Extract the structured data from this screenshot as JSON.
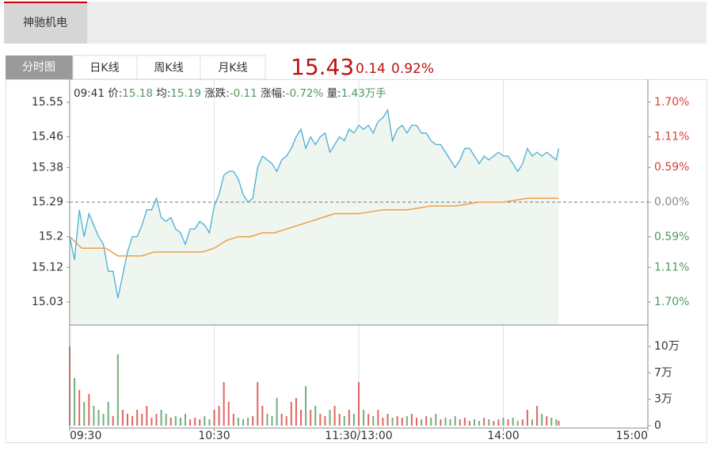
{
  "tabs": [
    "神驰机电"
  ],
  "chart_tabs": [
    "分时图",
    "日K线",
    "周K线",
    "月K线"
  ],
  "quote": {
    "price": 15.43,
    "change": 0.14,
    "change_pct": "0.92%"
  },
  "chart_data": {
    "type": "intraday",
    "info": {
      "time": "09:41",
      "price_label": "价:",
      "price": "15.18",
      "avg_label": "均:",
      "avg": "15.19",
      "chg_label": "涨跌:",
      "chg": "-0.11",
      "pct_label": "涨幅:",
      "pct": "-0.72%",
      "vol_label": "量:",
      "vol": "1.43万手"
    },
    "xlim": [
      0,
      240
    ],
    "xticks": [
      {
        "value": 0,
        "label": "09:30"
      },
      {
        "value": 60,
        "label": "10:30"
      },
      {
        "value": 120,
        "label": "11:30/13:00"
      },
      {
        "value": 180,
        "label": "14:00"
      },
      {
        "value": 240,
        "label": "15:00"
      }
    ],
    "x": [
      0,
      2,
      4,
      6,
      8,
      10,
      12,
      14,
      16,
      18,
      20,
      22,
      24,
      26,
      28,
      30,
      32,
      34,
      36,
      38,
      40,
      42,
      44,
      46,
      48,
      50,
      52,
      54,
      56,
      58,
      60,
      62,
      64,
      66,
      68,
      70,
      72,
      74,
      76,
      78,
      80,
      82,
      84,
      86,
      88,
      90,
      92,
      94,
      96,
      98,
      100,
      102,
      104,
      106,
      108,
      110,
      112,
      114,
      116,
      118,
      120,
      122,
      124,
      126,
      128,
      130,
      132,
      134,
      136,
      138,
      140,
      142,
      144,
      146,
      148,
      150,
      152,
      154,
      156,
      158,
      160,
      162,
      164,
      166,
      168,
      170,
      172,
      174,
      176,
      178,
      180,
      182,
      184,
      186,
      188,
      190,
      192,
      194,
      196,
      198,
      200,
      202,
      203
    ],
    "ylim": [
      14.97,
      15.61
    ],
    "yticks": [
      15.55,
      15.46,
      15.38,
      15.29,
      15.2,
      15.12,
      15.03
    ],
    "y2lim": [
      -2.09,
      2.09
    ],
    "y2ticks": [
      {
        "value": 1.7,
        "label": "1.70%"
      },
      {
        "value": 1.11,
        "label": "1.11%"
      },
      {
        "value": 0.59,
        "label": "0.59%"
      },
      {
        "value": 0,
        "label": "0.00%"
      },
      {
        "value": -0.59,
        "label": "0.59%"
      },
      {
        "value": -1.11,
        "label": "1.11%"
      },
      {
        "value": -1.7,
        "label": "1.70%"
      }
    ],
    "up_color": "#d9403a",
    "down_color": "#4e9a5e",
    "flat_color": "#888888",
    "series": [
      {
        "color": "#4aaed6",
        "fill": "#eef6ef",
        "values": [
          15.2,
          15.14,
          15.27,
          15.2,
          15.26,
          15.23,
          15.2,
          15.18,
          15.11,
          15.11,
          15.04,
          15.1,
          15.16,
          15.2,
          15.2,
          15.23,
          15.27,
          15.27,
          15.3,
          15.25,
          15.24,
          15.25,
          15.22,
          15.21,
          15.18,
          15.22,
          15.22,
          15.24,
          15.23,
          15.21,
          15.28,
          15.31,
          15.36,
          15.37,
          15.37,
          15.35,
          15.31,
          15.29,
          15.3,
          15.38,
          15.41,
          15.4,
          15.39,
          15.37,
          15.4,
          15.41,
          15.43,
          15.46,
          15.48,
          15.43,
          15.46,
          15.44,
          15.46,
          15.47,
          15.42,
          15.44,
          15.46,
          15.45,
          15.48,
          15.47,
          15.49,
          15.48,
          15.49,
          15.47,
          15.5,
          15.51,
          15.53,
          15.45,
          15.48,
          15.49,
          15.47,
          15.49,
          15.49,
          15.47,
          15.47,
          15.45,
          15.44,
          15.44,
          15.42,
          15.4,
          15.38,
          15.4,
          15.43,
          15.43,
          15.41,
          15.39,
          15.41,
          15.4,
          15.41,
          15.42,
          15.41,
          15.41,
          15.39,
          15.37,
          15.39,
          15.43,
          15.41,
          15.42,
          15.41,
          15.42,
          15.41,
          15.4,
          15.43
        ]
      },
      {
        "color": "#f0a044",
        "x": [
          0,
          5,
          10,
          15,
          20,
          25,
          30,
          35,
          40,
          45,
          50,
          55,
          60,
          65,
          70,
          75,
          80,
          85,
          90,
          95,
          100,
          105,
          110,
          115,
          120,
          130,
          140,
          150,
          160,
          170,
          180,
          190,
          200,
          203
        ],
        "values": [
          15.2,
          15.17,
          15.17,
          15.17,
          15.15,
          15.15,
          15.15,
          15.16,
          15.16,
          15.16,
          15.16,
          15.16,
          15.17,
          15.19,
          15.2,
          15.2,
          15.21,
          15.21,
          15.22,
          15.23,
          15.24,
          15.25,
          15.26,
          15.26,
          15.26,
          15.27,
          15.27,
          15.28,
          15.28,
          15.29,
          15.29,
          15.3,
          15.3,
          15.3
        ]
      }
    ],
    "volume": {
      "ylim": [
        0,
        127000
      ],
      "yticks": [
        0,
        {
          "value": 33333,
          "label": "3万"
        },
        {
          "value": 66667,
          "label": "7万"
        },
        {
          "value": 100000,
          "label": "10万"
        }
      ],
      "values": [
        100000,
        60000,
        45000,
        30000,
        40000,
        25000,
        20000,
        15000,
        30000,
        12000,
        90000,
        20000,
        15000,
        12000,
        20000,
        15000,
        25000,
        10000,
        15000,
        20000,
        15000,
        10000,
        12000,
        10000,
        15000,
        8000,
        10000,
        8000,
        12000,
        8000,
        20000,
        25000,
        55000,
        30000,
        15000,
        10000,
        8000,
        10000,
        12000,
        55000,
        25000,
        15000,
        12000,
        35000,
        15000,
        12000,
        30000,
        35000,
        20000,
        50000,
        20000,
        25000,
        15000,
        12000,
        20000,
        25000,
        15000,
        12000,
        20000,
        15000,
        55000,
        20000,
        15000,
        12000,
        20000,
        10000,
        15000,
        10000,
        12000,
        10000,
        12000,
        15000,
        10000,
        8000,
        12000,
        10000,
        15000,
        8000,
        10000,
        8000,
        12000,
        8000,
        10000,
        6000,
        8000,
        6000,
        10000,
        8000,
        6000,
        8000,
        10000,
        8000,
        10000,
        6000,
        8000,
        20000,
        8000,
        25000,
        15000,
        12000,
        10000,
        8000,
        6000
      ]
    }
  }
}
